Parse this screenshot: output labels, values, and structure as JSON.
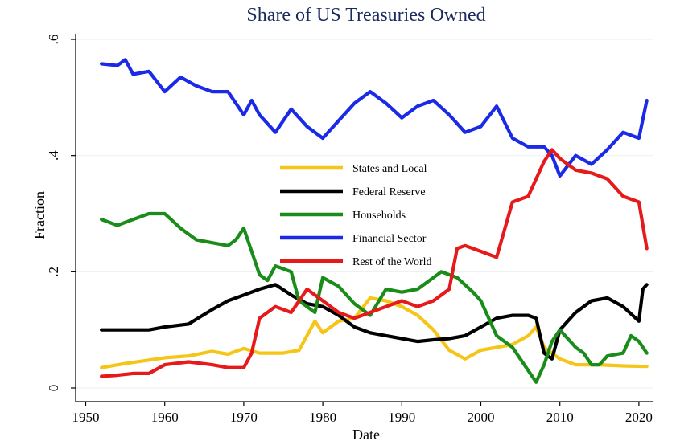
{
  "chart_data": {
    "type": "line",
    "title": "Share of US Treasuries Owned",
    "xlabel": "Date",
    "ylabel": "Fraction",
    "xlim": [
      1952,
      2021
    ],
    "ylim": [
      0,
      0.6
    ],
    "x_ticks": [
      1950,
      1960,
      1970,
      1980,
      1990,
      2000,
      2010,
      2020
    ],
    "y_ticks": [
      0,
      0.2,
      0.4,
      0.6
    ],
    "y_tick_labels": [
      "0",
      ".2",
      ".4",
      ".6"
    ],
    "grid": true,
    "legend_position": "center",
    "series": [
      {
        "name": "States and Local",
        "color": "#f5c518",
        "points": [
          [
            1952,
            0.035
          ],
          [
            1955,
            0.042
          ],
          [
            1958,
            0.048
          ],
          [
            1960,
            0.052
          ],
          [
            1963,
            0.055
          ],
          [
            1966,
            0.063
          ],
          [
            1968,
            0.058
          ],
          [
            1970,
            0.068
          ],
          [
            1972,
            0.06
          ],
          [
            1975,
            0.06
          ],
          [
            1977,
            0.065
          ],
          [
            1979,
            0.115
          ],
          [
            1980,
            0.095
          ],
          [
            1982,
            0.115
          ],
          [
            1984,
            0.12
          ],
          [
            1986,
            0.155
          ],
          [
            1988,
            0.15
          ],
          [
            1990,
            0.14
          ],
          [
            1992,
            0.125
          ],
          [
            1994,
            0.1
          ],
          [
            1996,
            0.065
          ],
          [
            1998,
            0.05
          ],
          [
            2000,
            0.065
          ],
          [
            2002,
            0.07
          ],
          [
            2004,
            0.075
          ],
          [
            2006,
            0.09
          ],
          [
            2007,
            0.105
          ],
          [
            2008,
            0.07
          ],
          [
            2010,
            0.05
          ],
          [
            2012,
            0.04
          ],
          [
            2015,
            0.04
          ],
          [
            2018,
            0.038
          ],
          [
            2021,
            0.037
          ]
        ]
      },
      {
        "name": "Federal Reserve",
        "color": "#000000",
        "points": [
          [
            1952,
            0.1
          ],
          [
            1955,
            0.1
          ],
          [
            1958,
            0.1
          ],
          [
            1960,
            0.105
          ],
          [
            1963,
            0.11
          ],
          [
            1966,
            0.135
          ],
          [
            1968,
            0.15
          ],
          [
            1970,
            0.16
          ],
          [
            1972,
            0.17
          ],
          [
            1974,
            0.178
          ],
          [
            1976,
            0.16
          ],
          [
            1978,
            0.145
          ],
          [
            1980,
            0.14
          ],
          [
            1982,
            0.125
          ],
          [
            1984,
            0.105
          ],
          [
            1986,
            0.095
          ],
          [
            1988,
            0.09
          ],
          [
            1990,
            0.085
          ],
          [
            1992,
            0.08
          ],
          [
            1994,
            0.083
          ],
          [
            1996,
            0.085
          ],
          [
            1998,
            0.09
          ],
          [
            2000,
            0.105
          ],
          [
            2002,
            0.12
          ],
          [
            2004,
            0.125
          ],
          [
            2006,
            0.125
          ],
          [
            2007,
            0.12
          ],
          [
            2008,
            0.06
          ],
          [
            2009,
            0.05
          ],
          [
            2010,
            0.1
          ],
          [
            2012,
            0.13
          ],
          [
            2014,
            0.15
          ],
          [
            2016,
            0.155
          ],
          [
            2018,
            0.14
          ],
          [
            2020,
            0.115
          ],
          [
            2020.5,
            0.17
          ],
          [
            2021,
            0.178
          ]
        ]
      },
      {
        "name": "Households",
        "color": "#1a8c1a",
        "points": [
          [
            1952,
            0.29
          ],
          [
            1954,
            0.28
          ],
          [
            1956,
            0.29
          ],
          [
            1958,
            0.3
          ],
          [
            1960,
            0.3
          ],
          [
            1962,
            0.275
          ],
          [
            1964,
            0.255
          ],
          [
            1966,
            0.25
          ],
          [
            1968,
            0.245
          ],
          [
            1969,
            0.255
          ],
          [
            1970,
            0.275
          ],
          [
            1971,
            0.235
          ],
          [
            1972,
            0.195
          ],
          [
            1973,
            0.185
          ],
          [
            1974,
            0.21
          ],
          [
            1976,
            0.2
          ],
          [
            1977,
            0.15
          ],
          [
            1978,
            0.14
          ],
          [
            1979,
            0.13
          ],
          [
            1980,
            0.19
          ],
          [
            1982,
            0.175
          ],
          [
            1984,
            0.145
          ],
          [
            1986,
            0.125
          ],
          [
            1988,
            0.17
          ],
          [
            1990,
            0.165
          ],
          [
            1992,
            0.17
          ],
          [
            1994,
            0.19
          ],
          [
            1995,
            0.2
          ],
          [
            1997,
            0.19
          ],
          [
            1999,
            0.165
          ],
          [
            2000,
            0.15
          ],
          [
            2002,
            0.09
          ],
          [
            2004,
            0.07
          ],
          [
            2006,
            0.03
          ],
          [
            2007,
            0.01
          ],
          [
            2008,
            0.04
          ],
          [
            2009,
            0.08
          ],
          [
            2010,
            0.1
          ],
          [
            2012,
            0.07
          ],
          [
            2013,
            0.06
          ],
          [
            2014,
            0.04
          ],
          [
            2015,
            0.04
          ],
          [
            2016,
            0.055
          ],
          [
            2018,
            0.06
          ],
          [
            2019,
            0.09
          ],
          [
            2020,
            0.08
          ],
          [
            2021,
            0.06
          ]
        ]
      },
      {
        "name": "Financial Sector",
        "color": "#1a2ae6",
        "points": [
          [
            1952,
            0.558
          ],
          [
            1954,
            0.555
          ],
          [
            1955,
            0.565
          ],
          [
            1956,
            0.54
          ],
          [
            1958,
            0.545
          ],
          [
            1960,
            0.51
          ],
          [
            1962,
            0.535
          ],
          [
            1964,
            0.52
          ],
          [
            1966,
            0.51
          ],
          [
            1968,
            0.51
          ],
          [
            1970,
            0.47
          ],
          [
            1971,
            0.495
          ],
          [
            1972,
            0.47
          ],
          [
            1974,
            0.44
          ],
          [
            1976,
            0.48
          ],
          [
            1978,
            0.45
          ],
          [
            1980,
            0.43
          ],
          [
            1982,
            0.46
          ],
          [
            1984,
            0.49
          ],
          [
            1986,
            0.51
          ],
          [
            1988,
            0.49
          ],
          [
            1990,
            0.465
          ],
          [
            1992,
            0.485
          ],
          [
            1994,
            0.495
          ],
          [
            1996,
            0.47
          ],
          [
            1998,
            0.44
          ],
          [
            2000,
            0.45
          ],
          [
            2002,
            0.485
          ],
          [
            2004,
            0.43
          ],
          [
            2006,
            0.415
          ],
          [
            2008,
            0.415
          ],
          [
            2009,
            0.4
          ],
          [
            2010,
            0.365
          ],
          [
            2012,
            0.4
          ],
          [
            2014,
            0.385
          ],
          [
            2016,
            0.41
          ],
          [
            2018,
            0.44
          ],
          [
            2020,
            0.43
          ],
          [
            2021,
            0.495
          ]
        ]
      },
      {
        "name": "Rest of the World",
        "color": "#e61a1a",
        "points": [
          [
            1952,
            0.02
          ],
          [
            1954,
            0.022
          ],
          [
            1956,
            0.025
          ],
          [
            1958,
            0.025
          ],
          [
            1960,
            0.04
          ],
          [
            1963,
            0.045
          ],
          [
            1966,
            0.04
          ],
          [
            1968,
            0.035
          ],
          [
            1970,
            0.035
          ],
          [
            1971,
            0.06
          ],
          [
            1972,
            0.12
          ],
          [
            1974,
            0.14
          ],
          [
            1976,
            0.13
          ],
          [
            1978,
            0.17
          ],
          [
            1980,
            0.15
          ],
          [
            1982,
            0.13
          ],
          [
            1984,
            0.12
          ],
          [
            1986,
            0.13
          ],
          [
            1988,
            0.14
          ],
          [
            1990,
            0.15
          ],
          [
            1992,
            0.14
          ],
          [
            1994,
            0.15
          ],
          [
            1996,
            0.17
          ],
          [
            1997,
            0.24
          ],
          [
            1998,
            0.245
          ],
          [
            2000,
            0.235
          ],
          [
            2002,
            0.225
          ],
          [
            2004,
            0.32
          ],
          [
            2006,
            0.33
          ],
          [
            2008,
            0.39
          ],
          [
            2009,
            0.41
          ],
          [
            2010,
            0.395
          ],
          [
            2012,
            0.375
          ],
          [
            2014,
            0.37
          ],
          [
            2016,
            0.36
          ],
          [
            2018,
            0.33
          ],
          [
            2020,
            0.32
          ],
          [
            2021,
            0.24
          ]
        ]
      }
    ]
  }
}
